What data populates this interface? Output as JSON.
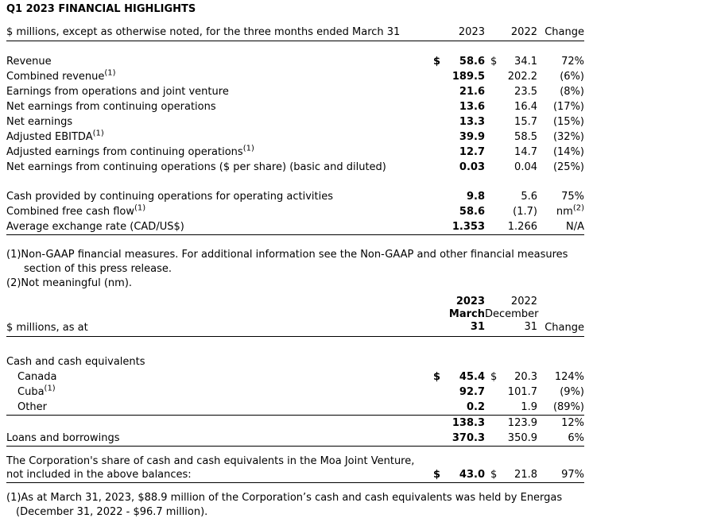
{
  "title": "Q1 2023 FINANCIAL HIGHLIGHTS",
  "table1": {
    "header": {
      "label": "$ millions, except as otherwise noted, for the three months ended March 31",
      "y2023": "2023",
      "y2022": "2022",
      "change": "Change"
    },
    "rows": [
      {
        "label": "Revenue",
        "d1": "$",
        "v1": "58.6",
        "d2": "$",
        "v2": "34.1",
        "chg": "72%"
      },
      {
        "label": "Combined revenue",
        "sup": "(1)",
        "v1": "189.5",
        "v2": "202.2",
        "chg": "(6%)"
      },
      {
        "label": "Earnings from operations and joint venture",
        "v1": "21.6",
        "v2": "23.5",
        "chg": "(8%)"
      },
      {
        "label": "Net earnings from continuing operations",
        "v1": "13.6",
        "v2": "16.4",
        "chg": "(17%)"
      },
      {
        "label": "Net earnings",
        "v1": "13.3",
        "v2": "15.7",
        "chg": "(15%)"
      },
      {
        "label": "Adjusted EBITDA",
        "sup": "(1)",
        "v1": "39.9",
        "v2": "58.5",
        "chg": "(32%)"
      },
      {
        "label": "Adjusted earnings from continuing operations",
        "sup": "(1)",
        "v1": "12.7",
        "v2": "14.7",
        "chg": "(14%)"
      },
      {
        "label": "Net earnings from continuing operations ($ per share) (basic and diluted)",
        "v1": "0.03",
        "v2": "0.04",
        "chg": "(25%)"
      },
      {
        "label": "Cash provided by continuing operations for operating activities",
        "v1": "9.8",
        "v2": "5.6",
        "chg": "75%"
      },
      {
        "label": "Combined free cash flow",
        "sup": "(1)",
        "v1": "58.6",
        "v2": "(1.7)",
        "chg": "nm",
        "chg_sup": "(2)"
      },
      {
        "label": "Average exchange rate (CAD/US$)",
        "v1": "1.353",
        "v2": "1.266",
        "chg": "N/A"
      }
    ]
  },
  "footnotes1": {
    "fn1_line1": "(1)Non-GAAP financial measures. For additional information see the Non-GAAP and other financial measures",
    "fn1_line2": "section of this press release.",
    "fn2": "(2)Not meaningful (nm)."
  },
  "table2": {
    "header": {
      "label": "$ millions, as at",
      "y2023": "2023",
      "m2023": "March",
      "d2023": "31",
      "y2022": "2022",
      "m2022": "December",
      "d2022": "31",
      "change": "Change"
    },
    "rows": [
      {
        "label": "Cash and cash equivalents"
      },
      {
        "label": "Canada",
        "d1": "$",
        "v1": "45.4",
        "d2": "$",
        "v2": "20.3",
        "chg": "124%"
      },
      {
        "label": "Cuba",
        "sup": "(1)",
        "v1": "92.7",
        "v2": "101.7",
        "chg": "(9%)"
      },
      {
        "label": "Other",
        "v1": "0.2",
        "v2": "1.9",
        "chg": "(89%)"
      },
      {
        "label": "",
        "v1": "138.3",
        "v2": "123.9",
        "chg": "12%"
      },
      {
        "label": "Loans and borrowings",
        "v1": "370.3",
        "v2": "350.9",
        "chg": "6%"
      }
    ]
  },
  "moa": {
    "line1": "The Corporation's share of cash and cash equivalents in the Moa Joint Venture,",
    "line2": "not included in the above balances:",
    "d1": "$",
    "v1": "43.0",
    "d2": "$",
    "v2": "21.8",
    "chg": "97%"
  },
  "footnotes2": {
    "fn1_line1": "(1)As at March 31, 2023, $88.9 million of the Corporation’s cash and cash equivalents was held by Energas",
    "fn1_line2": "(December 31, 2022 - $96.7 million)."
  }
}
